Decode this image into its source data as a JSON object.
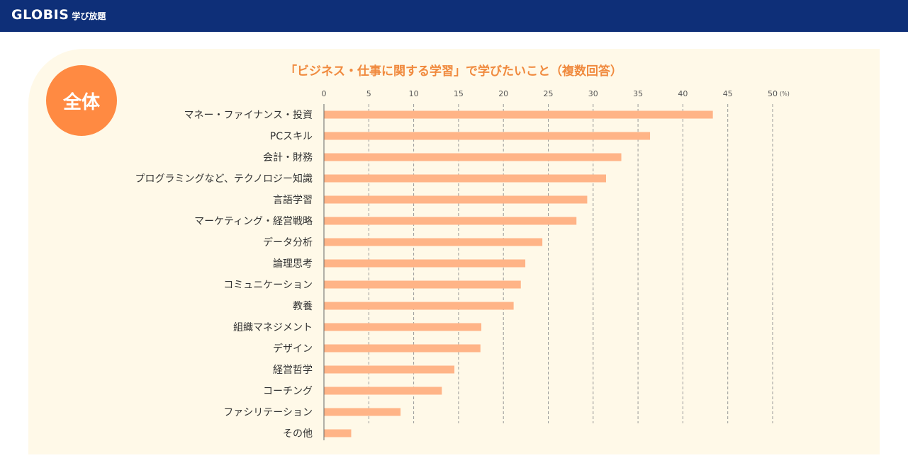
{
  "header": {
    "logo_main": "GLOBIS",
    "logo_sub": "学び放題"
  },
  "badge": {
    "label": "全体"
  },
  "colors": {
    "header_bg": "#0e2f78",
    "card_bg": "#fff9e8",
    "badge_bg": "#ff8a42",
    "title_color": "#f08a3e",
    "bar_color": "#ffb487"
  },
  "chart_data": {
    "type": "bar",
    "orientation": "horizontal",
    "title": "「ビジネス・仕事に関する学習」で学びたいこと（複数回答）",
    "xlabel": "",
    "ylabel": "",
    "unit": "(%)",
    "xlim": [
      0,
      50
    ],
    "xticks": [
      0,
      5,
      10,
      15,
      20,
      25,
      30,
      35,
      40,
      45,
      50
    ],
    "grid": "vertical dashed",
    "categories": [
      "マネー・ファイナンス・投資",
      "PCスキル",
      "会計・財務",
      "プログラミングなど、テクノロジー知識",
      "言語学習",
      "マーケティング・経営戦略",
      "データ分析",
      "論理思考",
      "コミュニケーション",
      "教養",
      "組織マネジメント",
      "デザイン",
      "経営哲学",
      "コーチング",
      "ファシリテーション",
      "その他"
    ],
    "values": [
      43.3,
      36.3,
      33.1,
      31.4,
      29.3,
      28.1,
      24.3,
      22.4,
      21.9,
      21.1,
      17.5,
      17.4,
      14.5,
      13.1,
      8.5,
      3.0
    ]
  }
}
